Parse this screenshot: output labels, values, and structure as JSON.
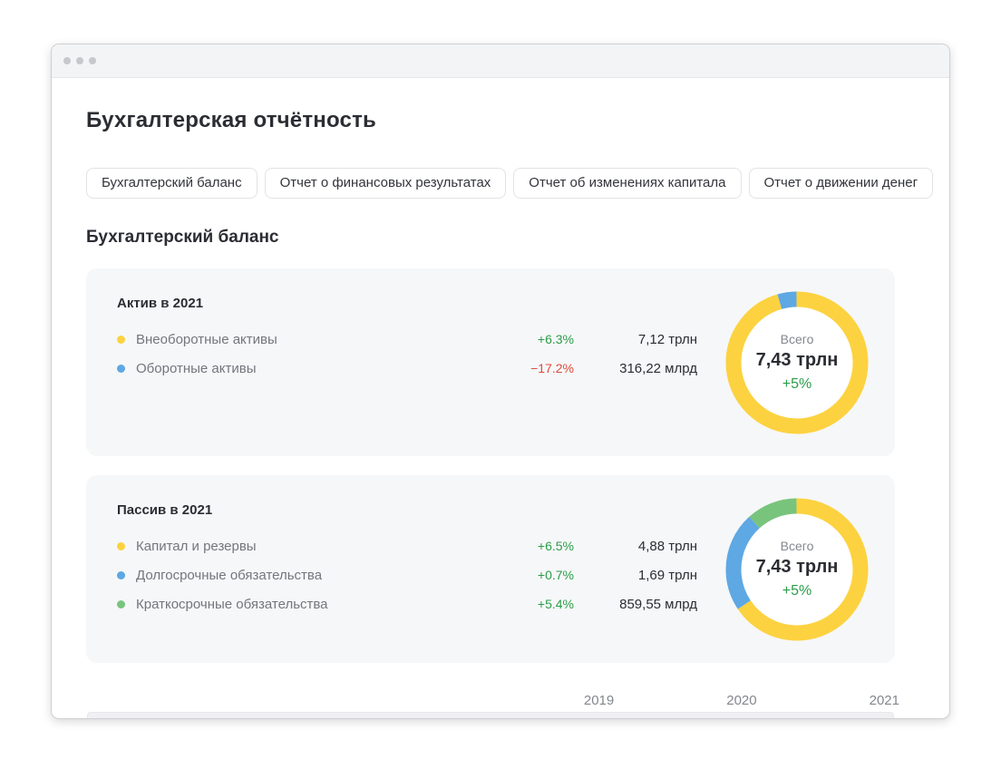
{
  "page_title": "Бухгалтерская отчётность",
  "tabs": [
    {
      "label": "Бухгалтерский баланс"
    },
    {
      "label": "Отчет о финансовых результатах"
    },
    {
      "label": "Отчет об изменениях капитала"
    },
    {
      "label": "Отчет о движении денег"
    }
  ],
  "section_title": "Бухгалтерский баланс",
  "colors": {
    "yellow": "#fcd240",
    "blue": "#5ea8e4",
    "green_segment": "#79c47d",
    "positive": "#2a9d48",
    "negative": "#df4b3b"
  },
  "cards": [
    {
      "title": "Актив в 2021",
      "rows": [
        {
          "label": "Внеоборотные активы",
          "color": "#fcd240",
          "change": "+6.3%",
          "dir": "up",
          "value": "7,12 трлн",
          "share": 95.7
        },
        {
          "label": "Оборотные активы",
          "color": "#5ea8e4",
          "change": "−17.2%",
          "dir": "down",
          "value": "316,22 млрд",
          "share": 4.3
        }
      ],
      "donut": {
        "caption": "Всего",
        "total": "7,43 трлн",
        "change": "+5%"
      }
    },
    {
      "title": "Пассив в 2021",
      "rows": [
        {
          "label": "Капитал и резервы",
          "color": "#fcd240",
          "change": "+6.5%",
          "dir": "up",
          "value": "4,88 трлн",
          "share": 65.7
        },
        {
          "label": "Долгосрочные обязательства",
          "color": "#5ea8e4",
          "change": "+0.7%",
          "dir": "up",
          "value": "1,69 трлн",
          "share": 22.7
        },
        {
          "label": "Краткосрочные обязательства",
          "color": "#79c47d",
          "change": "+5.4%",
          "dir": "up",
          "value": "859,55 млрд",
          "share": 11.6
        }
      ],
      "donut": {
        "caption": "Всего",
        "total": "7,43 трлн",
        "change": "+5%"
      }
    }
  ],
  "timeline_years": [
    "2019",
    "2020",
    "2021"
  ],
  "chart_data": [
    {
      "type": "pie",
      "title": "Актив в 2021",
      "categories": [
        "Внеоборотные активы",
        "Оборотные активы"
      ],
      "values": [
        7.12,
        0.31622
      ],
      "units": [
        "трлн",
        "млрд"
      ],
      "total_label": "Всего 7,43 трлн",
      "total_change": "+5%",
      "segment_colors": [
        "#fcd240",
        "#5ea8e4"
      ],
      "legend_position": "left"
    },
    {
      "type": "pie",
      "title": "Пассив в 2021",
      "categories": [
        "Капитал и резервы",
        "Долгосрочные обязательства",
        "Краткосрочные обязательства"
      ],
      "values": [
        4.88,
        1.69,
        0.85955
      ],
      "units": [
        "трлн",
        "трлн",
        "млрд"
      ],
      "total_label": "Всего 7,43 трлн",
      "total_change": "+5%",
      "segment_colors": [
        "#fcd240",
        "#5ea8e4",
        "#79c47d"
      ],
      "legend_position": "left"
    }
  ]
}
